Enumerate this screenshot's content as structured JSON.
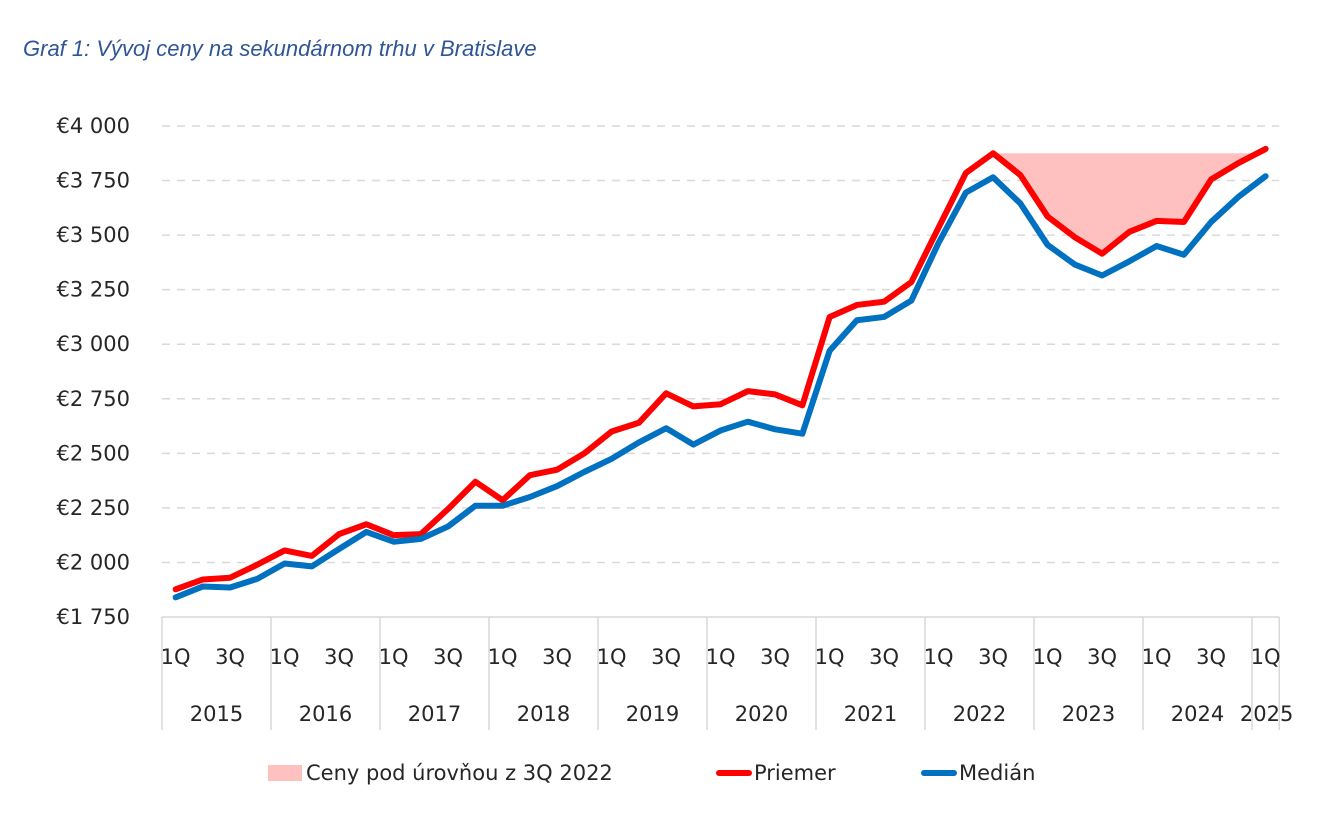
{
  "chart_data": {
    "type": "line",
    "title": "Graf 1: Vývoj ceny na sekundárnom trhu v Bratislave",
    "xlabel": "",
    "ylabel": "",
    "ylim": [
      1750,
      4000
    ],
    "y_ticks": [
      4000,
      3750,
      3500,
      3250,
      3000,
      2750,
      2500,
      2250,
      2000,
      1750
    ],
    "y_tick_labels": [
      "€4 000",
      "€3 750",
      "€3 500",
      "€3 250",
      "€3 000",
      "€2 750",
      "€2 500",
      "€2 250",
      "€2 000",
      "€1 750"
    ],
    "grid": true,
    "x_quarter_labels": [
      "1Q",
      "",
      "3Q",
      "",
      "1Q",
      "",
      "3Q",
      "",
      "1Q",
      "",
      "3Q",
      "",
      "1Q",
      "",
      "3Q",
      "",
      "1Q",
      "",
      "3Q",
      "",
      "1Q",
      "",
      "3Q",
      "",
      "1Q",
      "",
      "3Q",
      "",
      "1Q",
      "",
      "3Q",
      "",
      "1Q",
      "",
      "3Q",
      "",
      "1Q",
      "",
      "3Q",
      "",
      "1Q"
    ],
    "x_year_groups": [
      {
        "label": "2015",
        "quarters": 4
      },
      {
        "label": "2016",
        "quarters": 4
      },
      {
        "label": "2017",
        "quarters": 4
      },
      {
        "label": "2018",
        "quarters": 4
      },
      {
        "label": "2019",
        "quarters": 4
      },
      {
        "label": "2020",
        "quarters": 4
      },
      {
        "label": "2021",
        "quarters": 4
      },
      {
        "label": "2022",
        "quarters": 4
      },
      {
        "label": "2023",
        "quarters": 4
      },
      {
        "label": "2024",
        "quarters": 4
      },
      {
        "label": "2025",
        "quarters": 1
      }
    ],
    "x": [
      "1Q 2015",
      "2Q 2015",
      "3Q 2015",
      "4Q 2015",
      "1Q 2016",
      "2Q 2016",
      "3Q 2016",
      "4Q 2016",
      "1Q 2017",
      "2Q 2017",
      "3Q 2017",
      "4Q 2017",
      "1Q 2018",
      "2Q 2018",
      "3Q 2018",
      "4Q 2018",
      "1Q 2019",
      "2Q 2019",
      "3Q 2019",
      "4Q 2019",
      "1Q 2020",
      "2Q 2020",
      "3Q 2020",
      "4Q 2020",
      "1Q 2021",
      "2Q 2021",
      "3Q 2021",
      "4Q 2021",
      "1Q 2022",
      "2Q 2022",
      "3Q 2022",
      "4Q 2022",
      "1Q 2023",
      "2Q 2023",
      "3Q 2023",
      "4Q 2023",
      "1Q 2024",
      "2Q 2024",
      "3Q 2024",
      "4Q 2024",
      "1Q 2025"
    ],
    "series": [
      {
        "name": "Priemer",
        "color": "#FF0000",
        "values": [
          1877,
          1922,
          1930,
          1990,
          2055,
          2030,
          2130,
          2175,
          2125,
          2130,
          2245,
          2370,
          2285,
          2400,
          2425,
          2500,
          2600,
          2640,
          2775,
          2715,
          2725,
          2785,
          2770,
          2720,
          3125,
          3180,
          3195,
          3285,
          3535,
          3785,
          3875,
          3775,
          3585,
          3490,
          3415,
          3515,
          3565,
          3560,
          3755,
          3830,
          3895
        ]
      },
      {
        "name": "Medián",
        "color": "#0070C0",
        "values": [
          1840,
          1890,
          1885,
          1925,
          1995,
          1982,
          2062,
          2140,
          2095,
          2108,
          2165,
          2260,
          2260,
          2300,
          2350,
          2415,
          2475,
          2550,
          2615,
          2540,
          2605,
          2645,
          2610,
          2590,
          2970,
          3110,
          3125,
          3200,
          3465,
          3695,
          3765,
          3645,
          3455,
          3365,
          3315,
          3380,
          3450,
          3410,
          3560,
          3675,
          3770
        ]
      }
    ],
    "area": {
      "name": "Ceny pod úrovňou z 3Q 2022",
      "color": "#FFC0C0",
      "reference_level": 3875,
      "from": "3Q 2022",
      "to": "1Q 2025",
      "lower_series": "Priemer"
    },
    "legend": {
      "placement": "bottom",
      "entries": [
        {
          "label": "Ceny pod úrovňou z 3Q 2022",
          "kind": "area",
          "color": "#FFC0C0"
        },
        {
          "label": "Priemer",
          "kind": "line",
          "color": "#FF0000"
        },
        {
          "label": "Medián",
          "kind": "line",
          "color": "#0070C0"
        }
      ]
    }
  }
}
